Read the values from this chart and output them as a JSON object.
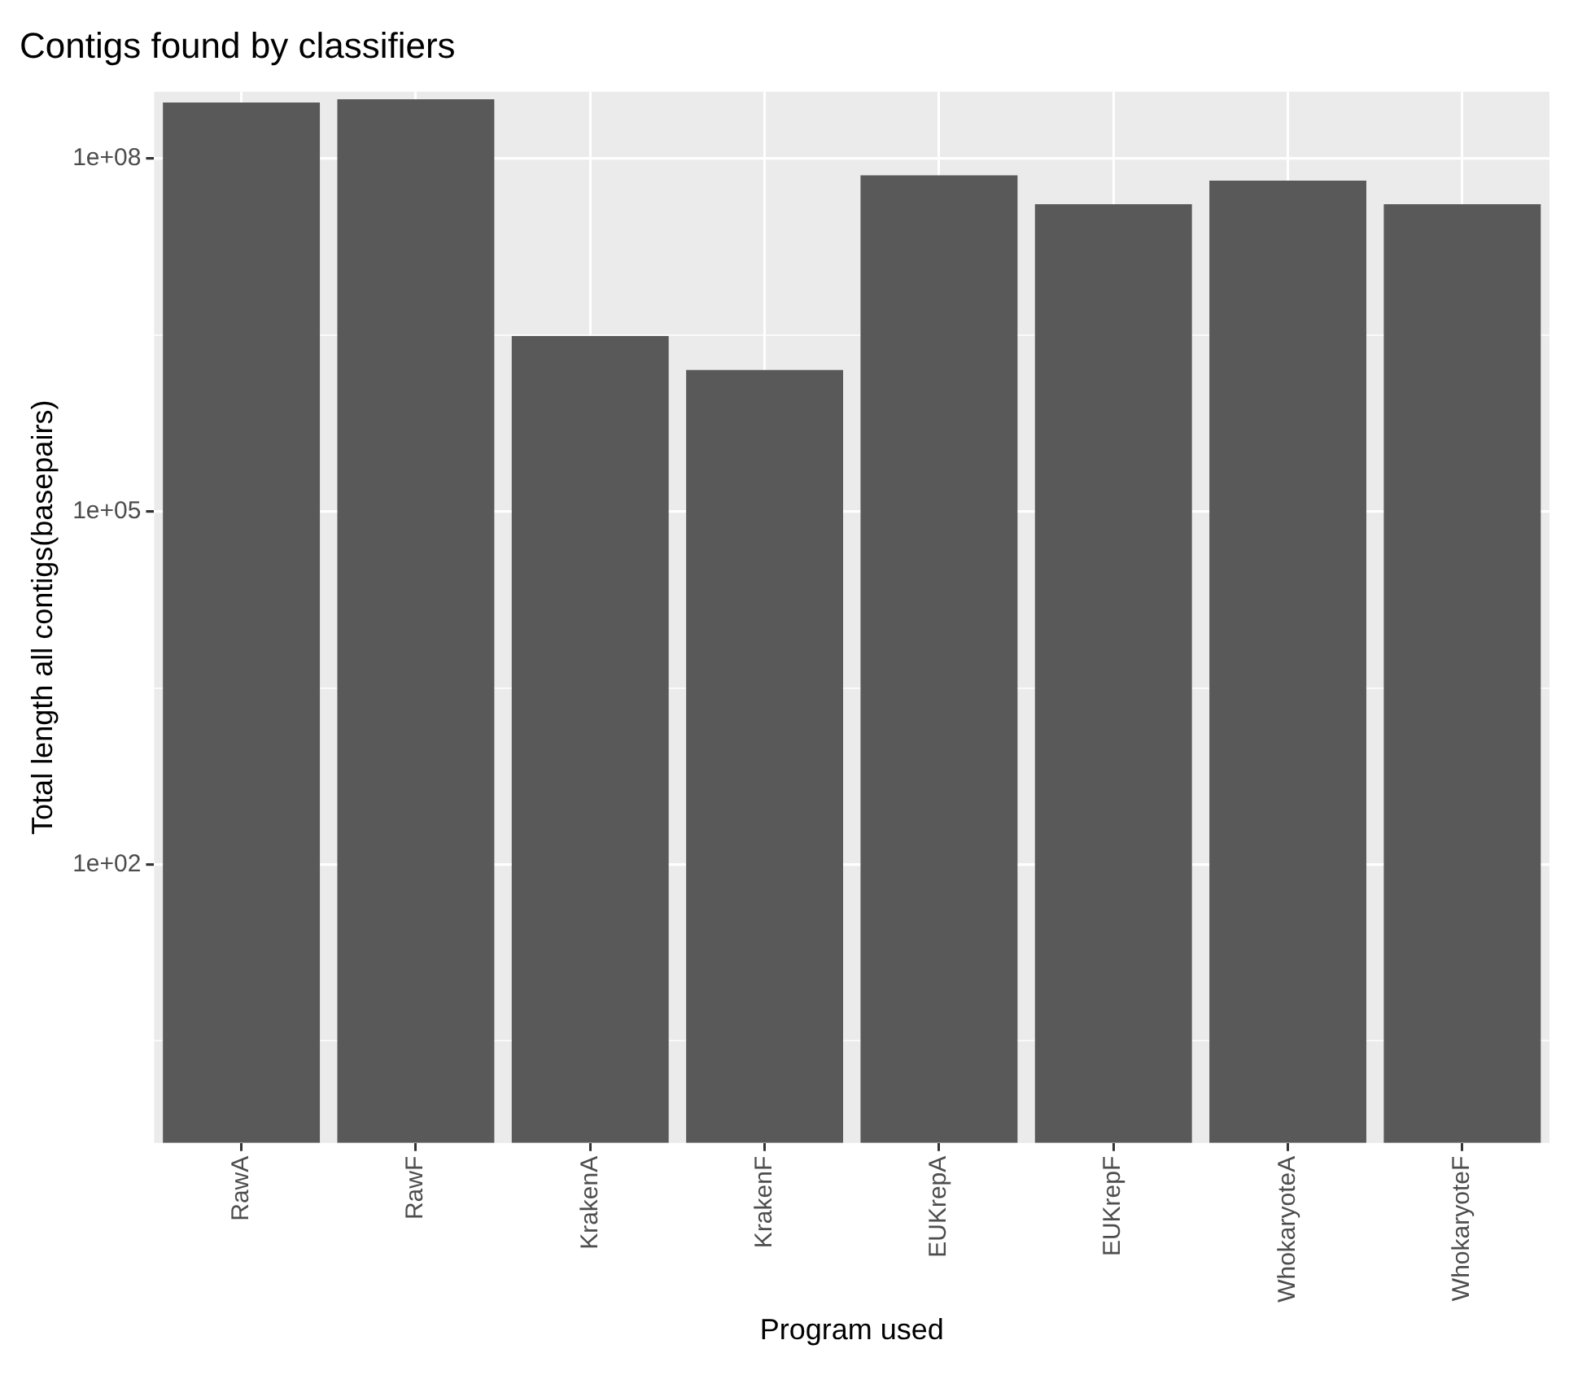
{
  "chart_data": {
    "type": "bar",
    "title": "Contigs found by classifiers",
    "xlabel": "Program used",
    "ylabel": "Total length all contigs(basepairs)",
    "categories": [
      "RawA",
      "RawF",
      "KrakenA",
      "KrakenF",
      "EUKrepA",
      "EUKrepF",
      "WhokaryoteA",
      "WhokaryoteF"
    ],
    "values": [
      300000000,
      320000000,
      3100000,
      1600000,
      72000000,
      41000000,
      65000000,
      41000000
    ],
    "color": "#595959",
    "log": "y",
    "ylim": [
      0.43,
      370000000
    ],
    "yticks": [
      {
        "value": 3.162,
        "label": null
      },
      {
        "value": 100,
        "label": "1e+02"
      },
      {
        "value": 3162,
        "label": null
      },
      {
        "value": 100000,
        "label": "1e+05"
      },
      {
        "value": 3162278,
        "label": null
      },
      {
        "value": 100000000,
        "label": "1e+08"
      }
    ],
    "grid": true
  }
}
